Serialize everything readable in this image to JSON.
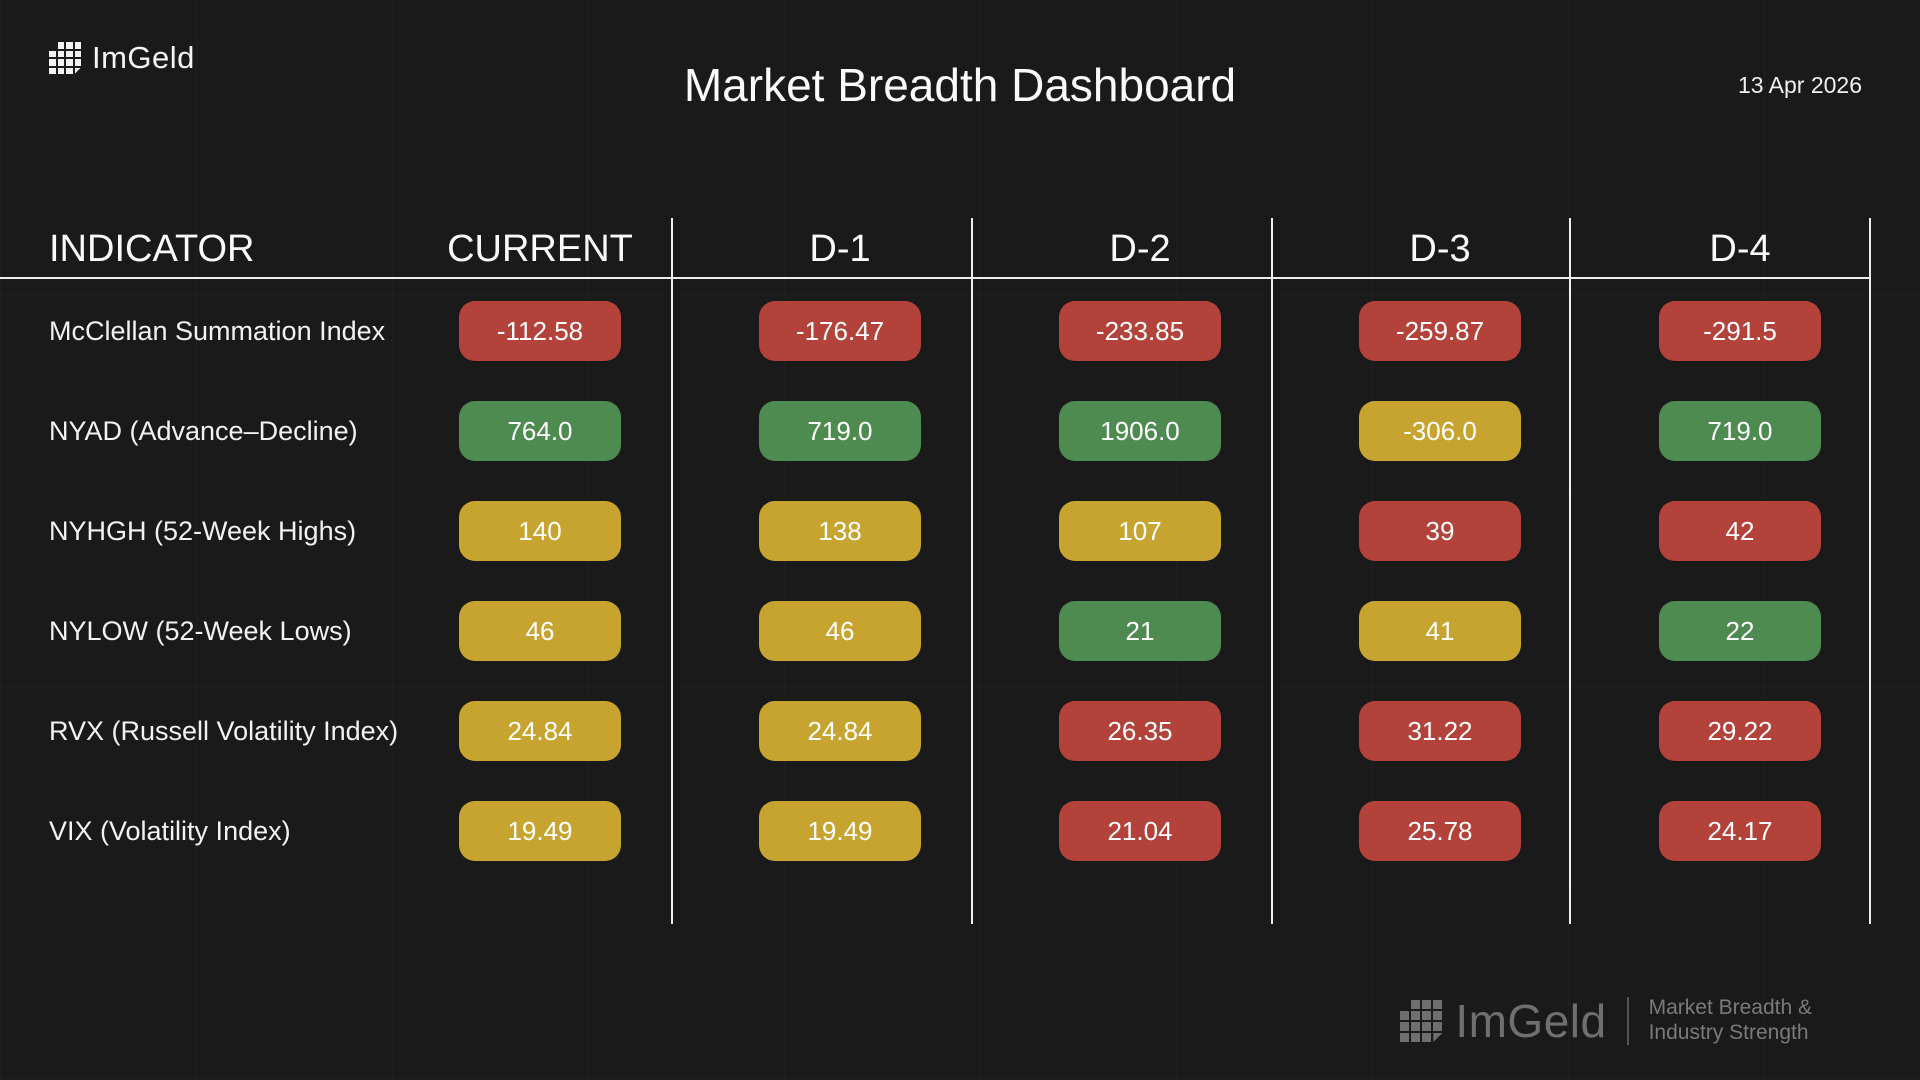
{
  "brand": {
    "logo_text": "ImGeld"
  },
  "header": {
    "title": "Market Breadth Dashboard",
    "date": "13 Apr 2026"
  },
  "colors": {
    "red": "#b2423a",
    "green": "#4e8b51",
    "yellow": "#c6a42f",
    "background": "#1a1a1a",
    "line": "#eeeeee"
  },
  "table": {
    "columns": [
      "INDICATOR",
      "CURRENT",
      "D-1",
      "D-2",
      "D-3",
      "D-4"
    ],
    "rows": [
      {
        "indicator": "McClellan Summation Index",
        "values": [
          {
            "text": "-112.58",
            "status": "red"
          },
          {
            "text": "-176.47",
            "status": "red"
          },
          {
            "text": "-233.85",
            "status": "red"
          },
          {
            "text": "-259.87",
            "status": "red"
          },
          {
            "text": "-291.5",
            "status": "red"
          }
        ]
      },
      {
        "indicator": "NYAD (Advance–Decline)",
        "values": [
          {
            "text": "764.0",
            "status": "green"
          },
          {
            "text": "719.0",
            "status": "green"
          },
          {
            "text": "1906.0",
            "status": "green"
          },
          {
            "text": "-306.0",
            "status": "yellow"
          },
          {
            "text": "719.0",
            "status": "green"
          }
        ]
      },
      {
        "indicator": "NYHGH (52-Week Highs)",
        "values": [
          {
            "text": "140",
            "status": "yellow"
          },
          {
            "text": "138",
            "status": "yellow"
          },
          {
            "text": "107",
            "status": "yellow"
          },
          {
            "text": "39",
            "status": "red"
          },
          {
            "text": "42",
            "status": "red"
          }
        ]
      },
      {
        "indicator": "NYLOW (52-Week Lows)",
        "values": [
          {
            "text": "46",
            "status": "yellow"
          },
          {
            "text": "46",
            "status": "yellow"
          },
          {
            "text": "21",
            "status": "green"
          },
          {
            "text": "41",
            "status": "yellow"
          },
          {
            "text": "22",
            "status": "green"
          }
        ]
      },
      {
        "indicator": "RVX (Russell Volatility Index)",
        "values": [
          {
            "text": "24.84",
            "status": "yellow"
          },
          {
            "text": "24.84",
            "status": "yellow"
          },
          {
            "text": "26.35",
            "status": "red"
          },
          {
            "text": "31.22",
            "status": "red"
          },
          {
            "text": "29.22",
            "status": "red"
          }
        ]
      },
      {
        "indicator": "VIX (Volatility Index)",
        "values": [
          {
            "text": "19.49",
            "status": "yellow"
          },
          {
            "text": "19.49",
            "status": "yellow"
          },
          {
            "text": "21.04",
            "status": "red"
          },
          {
            "text": "25.78",
            "status": "red"
          },
          {
            "text": "24.17",
            "status": "red"
          }
        ]
      }
    ]
  },
  "footer": {
    "logo_text": "ImGeld",
    "tagline_line1": "Market Breadth &",
    "tagline_line2": "Industry Strength"
  },
  "chart_data": {
    "type": "table",
    "title": "Market Breadth Dashboard",
    "date": "13 Apr 2026",
    "columns": [
      "INDICATOR",
      "CURRENT",
      "D-1",
      "D-2",
      "D-3",
      "D-4"
    ],
    "rows": [
      {
        "indicator": "McClellan Summation Index",
        "values": [
          -112.58,
          -176.47,
          -233.85,
          -259.87,
          -291.5
        ],
        "statuses": [
          "red",
          "red",
          "red",
          "red",
          "red"
        ]
      },
      {
        "indicator": "NYAD (Advance–Decline)",
        "values": [
          764.0,
          719.0,
          1906.0,
          -306.0,
          719.0
        ],
        "statuses": [
          "green",
          "green",
          "green",
          "yellow",
          "green"
        ]
      },
      {
        "indicator": "NYHGH (52-Week Highs)",
        "values": [
          140,
          138,
          107,
          39,
          42
        ],
        "statuses": [
          "yellow",
          "yellow",
          "yellow",
          "red",
          "red"
        ]
      },
      {
        "indicator": "NYLOW (52-Week Lows)",
        "values": [
          46,
          46,
          21,
          41,
          22
        ],
        "statuses": [
          "yellow",
          "yellow",
          "green",
          "yellow",
          "green"
        ]
      },
      {
        "indicator": "RVX (Russell Volatility Index)",
        "values": [
          24.84,
          24.84,
          26.35,
          31.22,
          29.22
        ],
        "statuses": [
          "yellow",
          "yellow",
          "red",
          "red",
          "red"
        ]
      },
      {
        "indicator": "VIX (Volatility Index)",
        "values": [
          19.49,
          19.49,
          21.04,
          25.78,
          24.17
        ],
        "statuses": [
          "yellow",
          "yellow",
          "red",
          "red",
          "red"
        ]
      }
    ],
    "status_colors": {
      "red": "#b2423a",
      "green": "#4e8b51",
      "yellow": "#c6a42f"
    },
    "legend_position": "none",
    "grid": false
  }
}
